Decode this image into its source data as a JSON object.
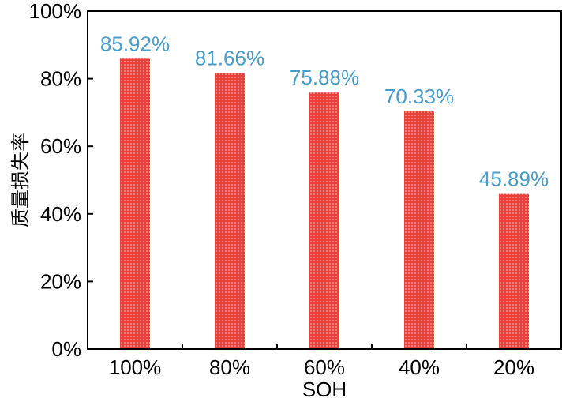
{
  "chart_data": {
    "type": "bar",
    "categories": [
      "100%",
      "80%",
      "60%",
      "40%",
      "20%"
    ],
    "values": [
      85.92,
      81.66,
      75.88,
      70.33,
      45.89
    ],
    "data_labels": [
      "85.92%",
      "81.66%",
      "75.88%",
      "70.33%",
      "45.89%"
    ],
    "title": "",
    "xlabel": "SOH",
    "ylabel": "质量损失率",
    "ylim": [
      0,
      100
    ],
    "yticks": [
      0,
      20,
      40,
      60,
      80,
      100
    ],
    "ytick_labels": [
      "0%",
      "20%",
      "40%",
      "60%",
      "80%",
      "100%"
    ],
    "grid": false,
    "colors": {
      "bar": "#e8403a",
      "bar_dot": "#f7b2ad",
      "data_label": "#4a9cc9",
      "axis": "#000000"
    }
  }
}
